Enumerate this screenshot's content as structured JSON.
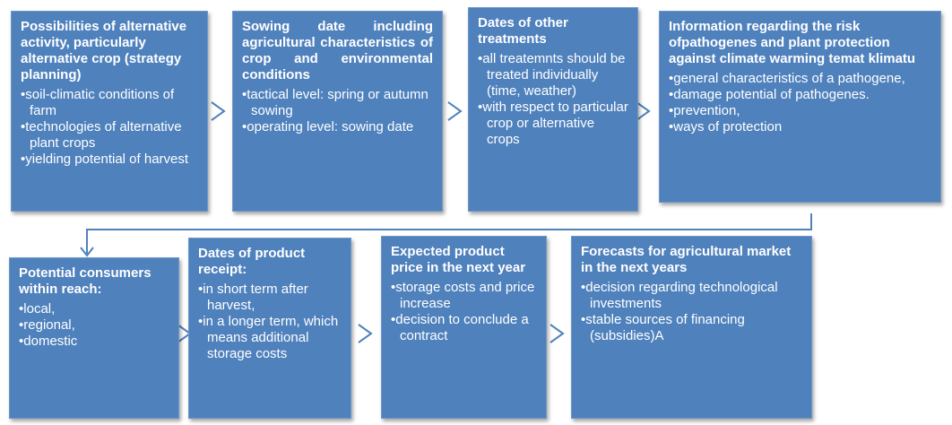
{
  "nodes": [
    {
      "title": "Possibilities of alternative activity, particularly alternative crop (strategy planning)",
      "bullets": [
        "soil-climatic conditions of farm",
        "technologies of alternative plant crops",
        "yielding potential of harvest"
      ]
    },
    {
      "title": "Sowing date including agricultural characteristics of crop and environmental conditions",
      "bullets": [
        "tactical level: spring or autumn sowing",
        "operating level: sowing date"
      ]
    },
    {
      "title": "Dates of other treatments",
      "bullets": [
        "all treatemnts should be treated individually (time, weather)",
        "with respect to particular crop or alternative crops"
      ]
    },
    {
      "title": "Information regarding the risk ofpathogenes and plant protection against climate warming temat klimatu",
      "bullets": [
        "general characteristics of a pathogene,",
        "damage potential of pathogenes.",
        "prevention,",
        "ways of protection"
      ]
    },
    {
      "title": "Potential consumers within reach:",
      "bullets": [
        "local,",
        "regional,",
        "domestic"
      ]
    },
    {
      "title": "Dates of product receipt:",
      "bullets": [
        "in short term after harvest,",
        "in a longer term, which means additional storage costs"
      ]
    },
    {
      "title": "Expected product price in the next year",
      "bullets": [
        "storage costs and price increase",
        "decision to conclude a contract"
      ]
    },
    {
      "title": "Forecasts for agricultural market in the next years",
      "bullets": [
        "decision regarding technological investments",
        "stable sources of financing (subsidies)A"
      ]
    }
  ]
}
